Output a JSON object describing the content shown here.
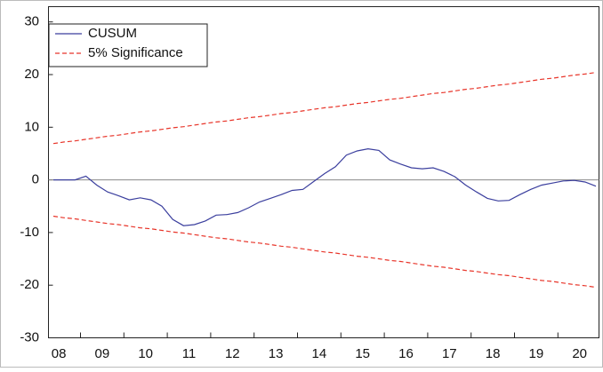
{
  "chart_data": {
    "type": "line",
    "categories": [
      "08",
      null,
      null,
      null,
      "09",
      null,
      null,
      null,
      "10",
      null,
      null,
      null,
      "11",
      null,
      null,
      null,
      "12",
      null,
      null,
      null,
      "13",
      null,
      null,
      null,
      "14",
      null,
      null,
      null,
      "15",
      null,
      null,
      null,
      "16",
      null,
      null,
      null,
      "17",
      null,
      null,
      null,
      "18",
      null,
      null,
      null,
      "19",
      null,
      null,
      null,
      "20",
      null,
      null
    ],
    "series": [
      {
        "name": "CUSUM",
        "color": "#3b3f9e",
        "style": "solid",
        "values": [
          0,
          0,
          0,
          0.7,
          -1.0,
          -2.3,
          -3.0,
          -3.8,
          -3.4,
          -3.8,
          -5.0,
          -7.5,
          -8.7,
          -8.5,
          -7.8,
          -6.7,
          -6.6,
          -6.2,
          -5.3,
          -4.2,
          -3.5,
          -2.8,
          -2.0,
          -1.8,
          -0.3,
          1.2,
          2.5,
          4.7,
          5.5,
          5.9,
          5.6,
          3.8,
          3.0,
          2.3,
          2.1,
          2.3,
          1.6,
          0.6,
          -1.0,
          -2.3,
          -3.5,
          -4.0,
          -3.9,
          -2.8,
          -1.8,
          -1.0,
          -0.6,
          -0.2,
          -0.1,
          -0.4,
          -1.2
        ]
      },
      {
        "name": "5% Significance",
        "color": "#e8352a",
        "style": "dashed",
        "values": [
          6.9,
          7.2,
          7.4,
          7.7,
          8.0,
          8.3,
          8.5,
          8.8,
          9.1,
          9.3,
          9.6,
          9.9,
          10.1,
          10.4,
          10.7,
          11.0,
          11.2,
          11.5,
          11.8,
          12.0,
          12.3,
          12.6,
          12.8,
          13.1,
          13.4,
          13.7,
          13.9,
          14.2,
          14.5,
          14.7,
          15.0,
          15.3,
          15.5,
          15.8,
          16.1,
          16.4,
          16.6,
          16.9,
          17.2,
          17.4,
          17.7,
          18.0,
          18.2,
          18.5,
          18.8,
          19.1,
          19.3,
          19.6,
          19.9,
          20.1,
          20.4
        ]
      },
      {
        "color": "#e8352a",
        "style": "dashed",
        "values": [
          -6.9,
          -7.2,
          -7.4,
          -7.7,
          -8.0,
          -8.3,
          -8.5,
          -8.8,
          -9.1,
          -9.3,
          -9.6,
          -9.9,
          -10.1,
          -10.4,
          -10.7,
          -11.0,
          -11.2,
          -11.5,
          -11.8,
          -12.0,
          -12.3,
          -12.6,
          -12.8,
          -13.1,
          -13.4,
          -13.7,
          -13.9,
          -14.2,
          -14.5,
          -14.7,
          -15.0,
          -15.3,
          -15.5,
          -15.8,
          -16.1,
          -16.4,
          -16.6,
          -16.9,
          -17.2,
          -17.4,
          -17.7,
          -18.0,
          -18.2,
          -18.5,
          -18.8,
          -19.1,
          -19.3,
          -19.6,
          -19.9,
          -20.1,
          -20.4
        ]
      }
    ],
    "ylim": [
      -30,
      32.9
    ],
    "yticks": [
      -30,
      -20,
      -10,
      0,
      10,
      20,
      30
    ],
    "zero_line": true,
    "legend": "top-left"
  }
}
